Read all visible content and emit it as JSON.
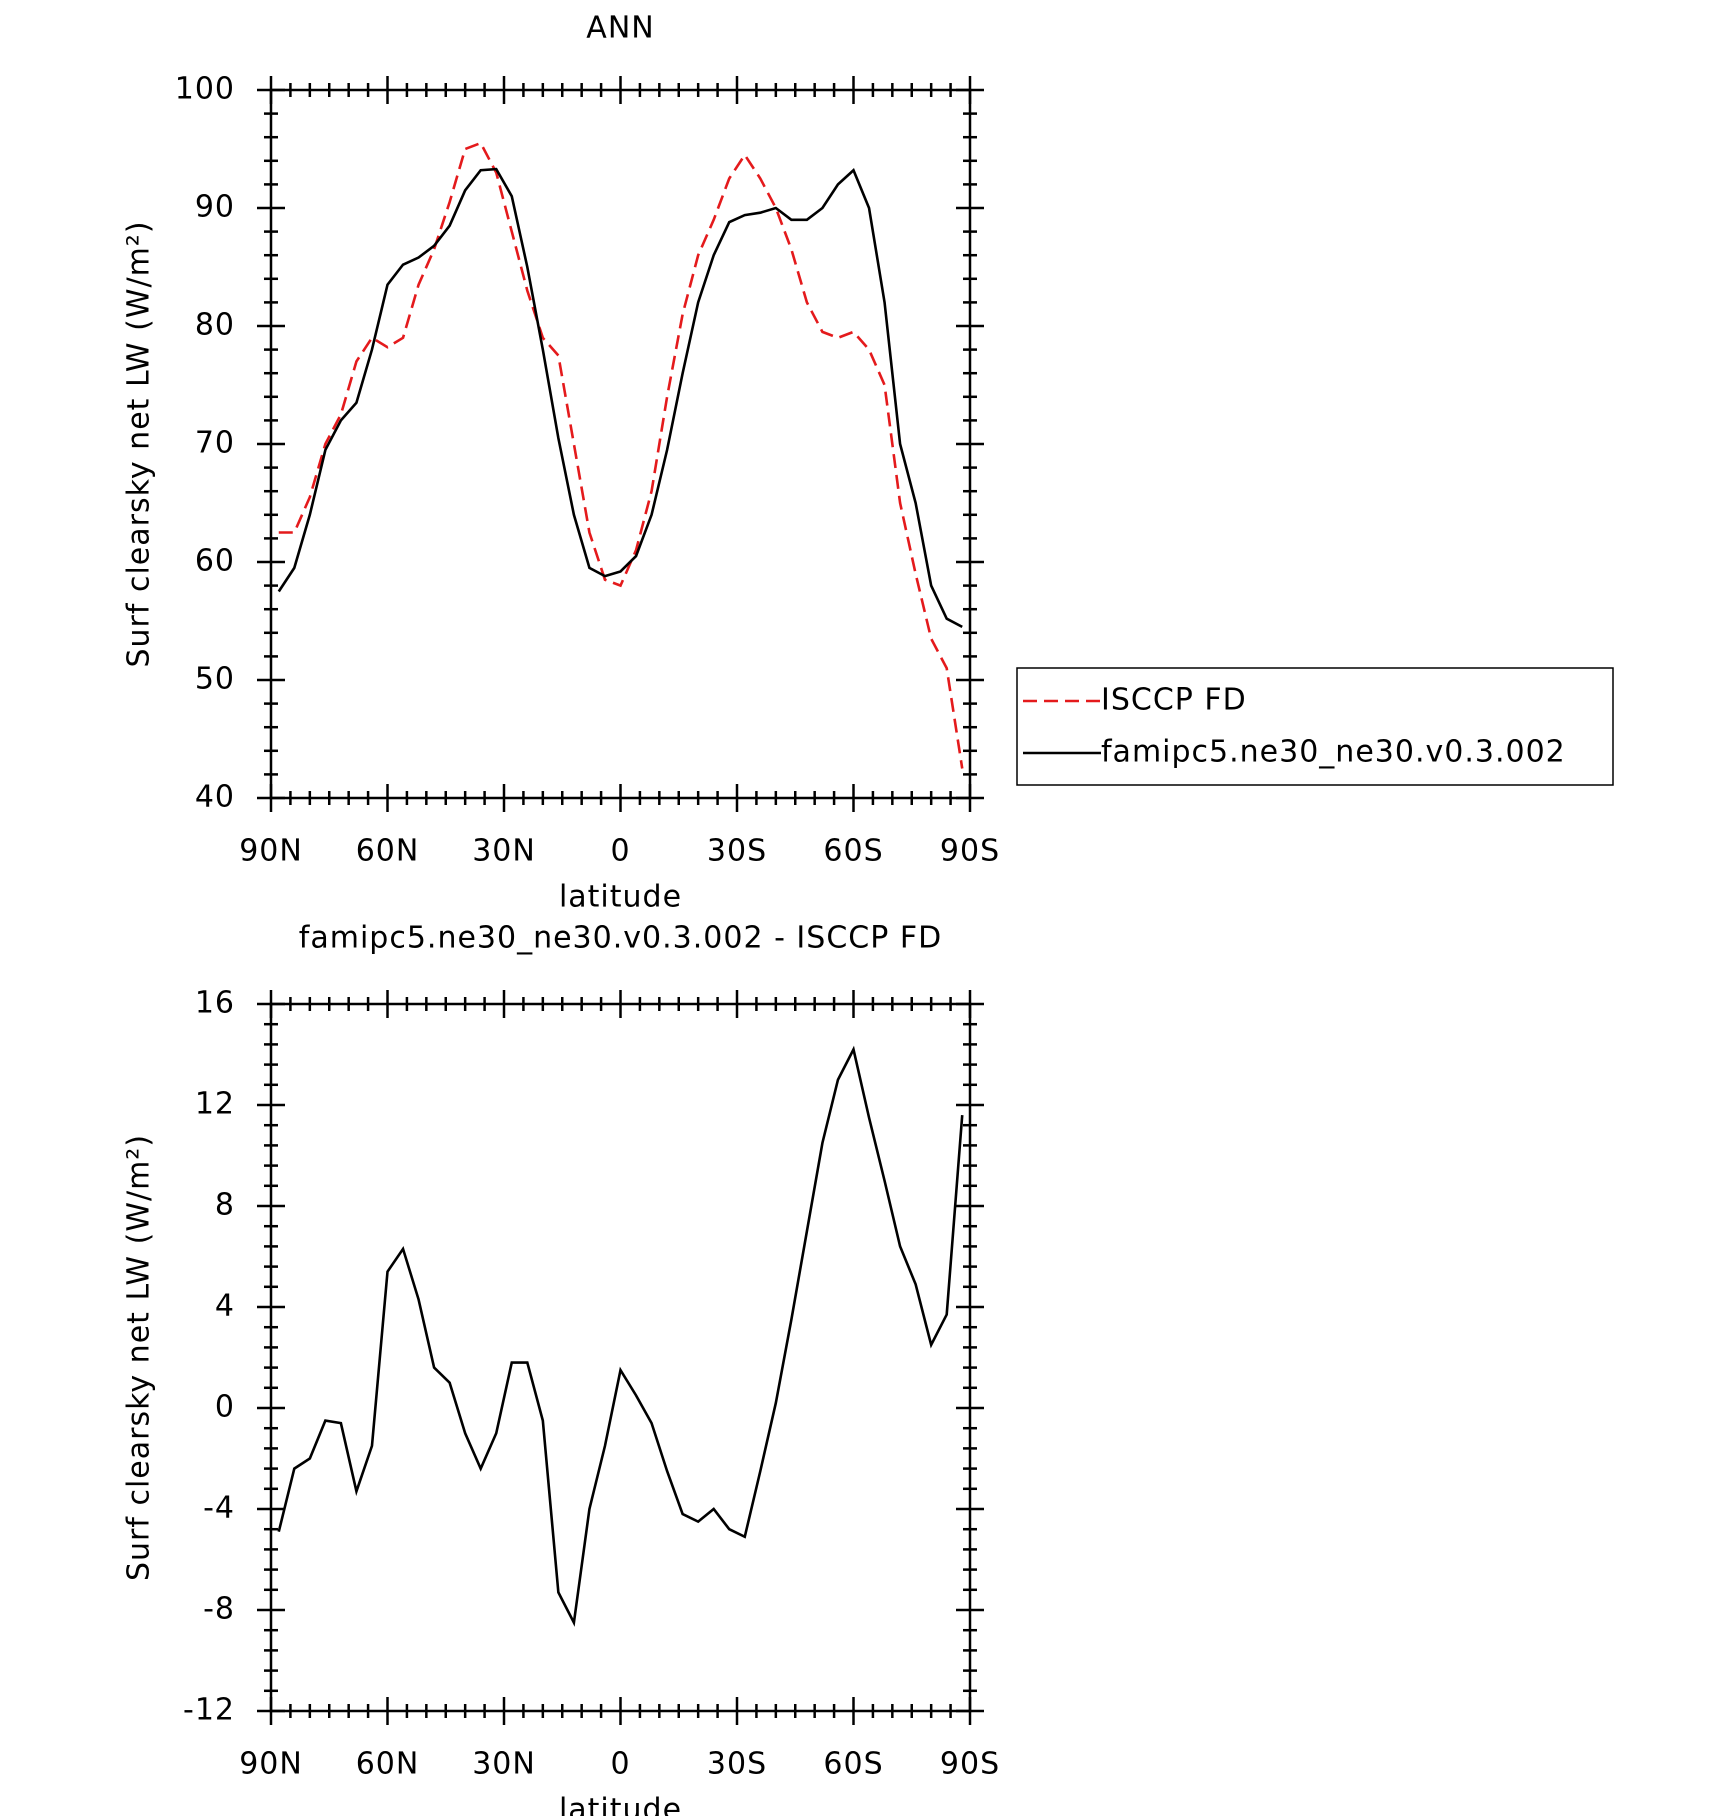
{
  "chart_data": [
    {
      "type": "line",
      "title": "ANN",
      "xlabel": "latitude",
      "ylabel": "Surf clearsky net LW (W/m²)",
      "x": [
        88,
        84,
        80,
        76,
        72,
        68,
        64,
        60,
        56,
        52,
        48,
        44,
        40,
        36,
        32,
        28,
        24,
        20,
        16,
        12,
        8,
        4,
        0,
        -4,
        -8,
        -12,
        -16,
        -20,
        -24,
        -28,
        -32,
        -36,
        -40,
        -44,
        -48,
        -52,
        -56,
        -60,
        -64,
        -68,
        -72,
        -76,
        -80,
        -84,
        -88
      ],
      "series": [
        {
          "name": "ISCCP FD",
          "color": "#e41a1c",
          "dash": true,
          "values": [
            62.5,
            62.5,
            65.5,
            70,
            72.5,
            77,
            79,
            78.2,
            79,
            83.5,
            86.5,
            90.5,
            95,
            95.5,
            93,
            88,
            83,
            79,
            77.5,
            70,
            62.5,
            58.5,
            58,
            61,
            66,
            74,
            81,
            86,
            89,
            92.5,
            94.5,
            92.5,
            90,
            86.5,
            82,
            79.5,
            79,
            79.5,
            78,
            75,
            65,
            59,
            53.5,
            51,
            42.5
          ]
        },
        {
          "name": "famipc5.ne30_ne30.v0.3.002",
          "color": "#000000",
          "dash": false,
          "values": [
            57.5,
            59.5,
            64,
            69.5,
            72,
            73.5,
            78,
            83.5,
            85.2,
            85.8,
            86.8,
            88.5,
            91.5,
            93.2,
            93.3,
            91,
            85,
            78,
            70.5,
            64,
            59.5,
            58.8,
            59.2,
            60.5,
            64,
            69.5,
            76,
            82,
            86,
            88.8,
            89.4,
            89.6,
            90,
            89,
            89,
            90,
            92,
            93.2,
            90,
            82,
            70,
            65,
            58,
            55.2,
            54.5
          ]
        }
      ],
      "xlim": [
        90,
        -90
      ],
      "xticks": [
        {
          "value": 90,
          "label": "90N"
        },
        {
          "value": 60,
          "label": "60N"
        },
        {
          "value": 30,
          "label": "30N"
        },
        0,
        {
          "value": -30,
          "label": "30S"
        },
        {
          "value": -60,
          "label": "60S"
        },
        {
          "value": -90,
          "label": "90S"
        }
      ],
      "ylim": [
        40,
        100
      ],
      "yticks": [
        40,
        50,
        60,
        70,
        80,
        90,
        100
      ],
      "legend": "right"
    },
    {
      "type": "line",
      "title": "famipc5.ne30_ne30.v0.3.002 - ISCCP FD",
      "xlabel": "latitude",
      "ylabel": "Surf clearsky net LW (W/m²)",
      "x": [
        88,
        84,
        80,
        76,
        72,
        68,
        64,
        60,
        56,
        52,
        48,
        44,
        40,
        36,
        32,
        28,
        24,
        20,
        16,
        12,
        8,
        4,
        0,
        -4,
        -8,
        -12,
        -16,
        -20,
        -24,
        -28,
        -32,
        -36,
        -40,
        -44,
        -48,
        -52,
        -56,
        -60,
        -64,
        -68,
        -72,
        -76,
        -80,
        -84,
        -88
      ],
      "series": [
        {
          "color": "#000000",
          "dash": false,
          "values": [
            -4.9,
            -2.4,
            -2,
            -0.5,
            -0.6,
            -3.3,
            -1.5,
            5.4,
            6.3,
            4.3,
            1.6,
            1,
            -1,
            -2.4,
            -1,
            1.8,
            1.8,
            -0.5,
            -7.3,
            -8.5,
            -4,
            -1.5,
            1.5,
            0.5,
            -0.6,
            -2.5,
            -4.2,
            -4.5,
            -4,
            -4.8,
            -5.1,
            -2.5,
            0.2,
            3.5,
            7,
            10.5,
            13,
            14.2,
            11.5,
            9,
            6.4,
            4.9,
            2.5,
            3.7,
            11.6
          ]
        }
      ],
      "xlim": [
        90,
        -90
      ],
      "xticks": [
        {
          "value": 90,
          "label": "90N"
        },
        {
          "value": 60,
          "label": "60N"
        },
        {
          "value": 30,
          "label": "30N"
        },
        0,
        {
          "value": -30,
          "label": "30S"
        },
        {
          "value": -60,
          "label": "60S"
        },
        {
          "value": -90,
          "label": "90S"
        }
      ],
      "ylim": [
        -12,
        16
      ],
      "yticks": [
        -12,
        -8,
        -4,
        0,
        4,
        8,
        12,
        16
      ]
    }
  ]
}
